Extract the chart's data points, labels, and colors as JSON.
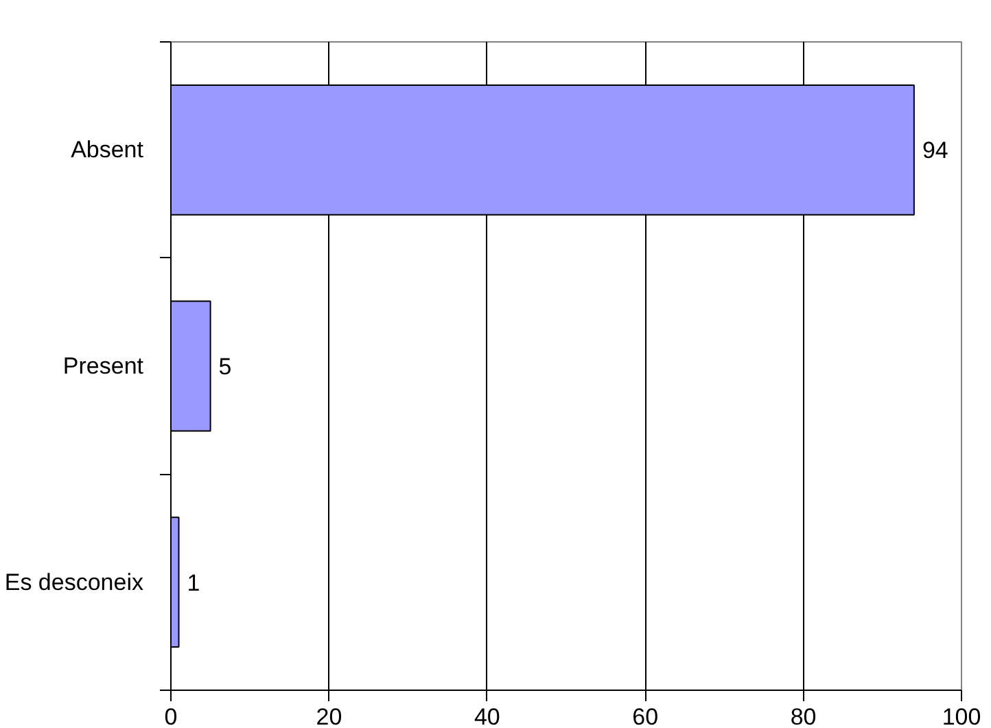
{
  "chart_data": {
    "type": "bar",
    "orientation": "horizontal",
    "categories": [
      "Absent",
      "Present",
      "Es desconeix"
    ],
    "values": [
      94,
      5,
      1
    ],
    "color": "#9999ff",
    "xlim": [
      0,
      100
    ],
    "xticks": [
      0,
      20,
      40,
      60,
      80,
      100
    ],
    "grid": "x",
    "data_labels": true
  }
}
